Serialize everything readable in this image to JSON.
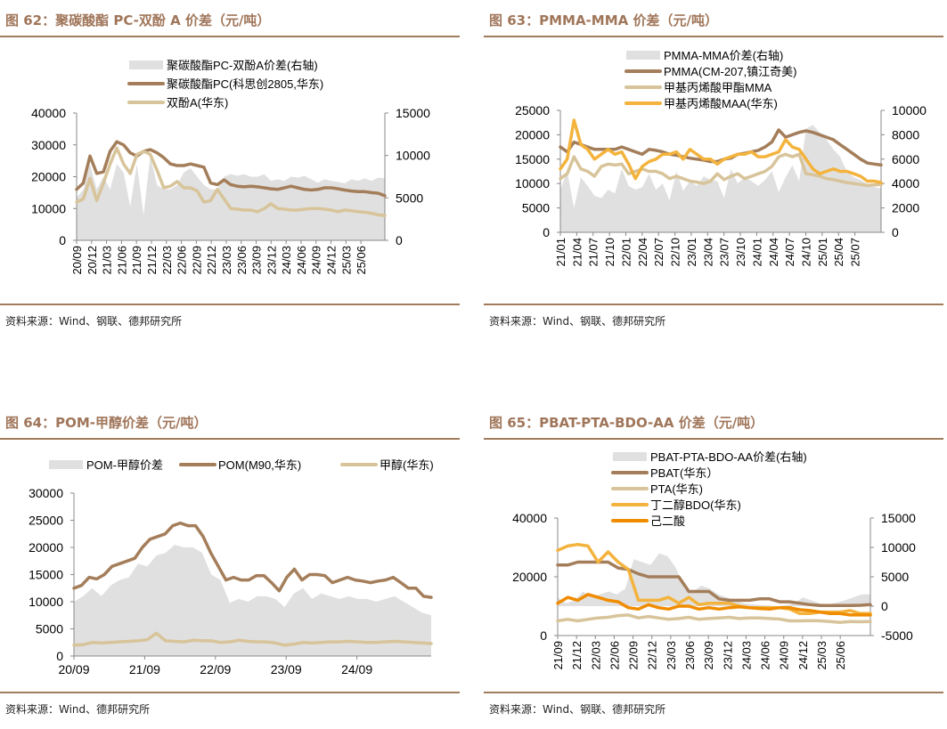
{
  "panels": [
    {
      "id": "fig62",
      "title": "图 62：聚碳酸酯 PC-双酚 A 价差（元/吨）",
      "source": "资料来源：Wind、钢联、德邦研究所"
    },
    {
      "id": "fig63",
      "title": "图 63：PMMA-MMA 价差（元/吨）",
      "source": "资料来源：Wind、钢联、德邦研究所"
    },
    {
      "id": "fig64",
      "title": "图 64：POM-甲醇价差（元/吨）",
      "source": "资料来源：Wind、德邦研究所"
    },
    {
      "id": "fig65",
      "title": "图 65：PBAT-PTA-BDO-AA 价差（元/吨）",
      "source": "资料来源：Wind、钢联、德邦研究所"
    }
  ],
  "colors": {
    "title": "#a0765a",
    "rule": "#a07c5c",
    "spread": "#e0e0e0",
    "brown": "#a47e5a",
    "beige": "#d8c49a",
    "yellow": "#f3b33d",
    "orange": "#f08c00"
  },
  "chart_data": [
    {
      "type": "line",
      "title": "聚碳酸酯 PC-双酚 A 价差（元/吨）",
      "legend_position": "top-center",
      "legend": [
        "聚碳酸酯PC-双酚A价差(右轴)",
        "聚碳酸酯PC(科思创2805,华东)",
        "双酚A(华东)"
      ],
      "x_ticks": [
        "20/09",
        "20/12",
        "21/03",
        "21/06",
        "21/09",
        "21/12",
        "22/03",
        "22/06",
        "22/09",
        "22/12",
        "23/03",
        "23/06",
        "23/09",
        "23/12",
        "24/03",
        "24/06",
        "24/09",
        "24/12",
        "25/03",
        "25/06"
      ],
      "y_left": {
        "ylim": [
          0,
          40000
        ],
        "ticks": [
          0,
          10000,
          20000,
          30000,
          40000
        ]
      },
      "y_right": {
        "ylim": [
          0,
          15000
        ],
        "ticks": [
          0,
          5000,
          10000,
          15000
        ]
      },
      "series": [
        {
          "name": "聚碳酸酯PC-双酚A价差(右轴)",
          "axis": "right",
          "kind": "area",
          "color_key": "spread",
          "values": [
            5000,
            6000,
            9000,
            6000,
            7500,
            6000,
            9000,
            8000,
            4000,
            9000,
            3000,
            10000,
            6500,
            6000,
            6000,
            6500,
            8000,
            8500,
            7500,
            6500,
            6000,
            6000,
            7500,
            7800,
            7600,
            7800,
            7500,
            7500,
            7800,
            7000,
            7200,
            7000,
            7500,
            7400,
            7600,
            7200,
            6800,
            7200,
            7000,
            6900,
            6700,
            7200,
            7000,
            7300,
            7000,
            7400,
            7300
          ]
        },
        {
          "name": "聚碳酸酯PC(科思创2805,华东)",
          "axis": "left",
          "kind": "line",
          "color_key": "brown",
          "values": [
            16000,
            18000,
            26500,
            21000,
            21500,
            28000,
            31000,
            30000,
            27500,
            26500,
            28000,
            28500,
            27500,
            26000,
            24000,
            23500,
            23500,
            24000,
            23500,
            23000,
            18000,
            17500,
            19000,
            17500,
            17000,
            16800,
            17000,
            16800,
            16500,
            16200,
            16000,
            16500,
            17000,
            16500,
            16000,
            15800,
            16000,
            16500,
            16500,
            16200,
            15800,
            15500,
            15300,
            15300,
            15000,
            14800,
            14000
          ]
        },
        {
          "name": "双酚A(华东)",
          "axis": "left",
          "kind": "line",
          "color_key": "beige",
          "values": [
            12000,
            13000,
            19500,
            12500,
            18000,
            24000,
            29000,
            24000,
            21000,
            27000,
            28000,
            27000,
            22000,
            16500,
            17000,
            18500,
            16500,
            16500,
            15500,
            12000,
            12500,
            16000,
            13000,
            10000,
            9800,
            9500,
            9500,
            9000,
            10000,
            11500,
            10000,
            9800,
            9500,
            9500,
            9800,
            10000,
            10000,
            9800,
            9500,
            9000,
            9500,
            9300,
            9000,
            8800,
            8500,
            8000,
            7800
          ]
        }
      ]
    },
    {
      "type": "line",
      "title": "PMMA-MMA 价差（元/吨）",
      "legend_position": "top-center",
      "legend": [
        "PMMA-MMA价差(右轴)",
        "PMMA(CM-207,镇江奇美)",
        "甲基丙烯酸甲酯MMA",
        "甲基丙烯酸MAA(华东)"
      ],
      "x_ticks": [
        "21/01",
        "21/04",
        "21/07",
        "21/10",
        "22/01",
        "22/04",
        "22/07",
        "22/10",
        "23/01",
        "23/04",
        "23/07",
        "23/10",
        "24/01",
        "24/04",
        "24/07",
        "24/10",
        "25/01",
        "25/04",
        "25/07"
      ],
      "y_left": {
        "ylim": [
          0,
          25000
        ],
        "ticks": [
          0,
          5000,
          10000,
          15000,
          20000,
          25000
        ]
      },
      "y_right": {
        "ylim": [
          0,
          10000
        ],
        "ticks": [
          0,
          2000,
          4000,
          6000,
          8000,
          10000
        ]
      },
      "series": [
        {
          "name": "PMMA-MMA价差(右轴)",
          "axis": "right",
          "kind": "area",
          "color_key": "spread",
          "values": [
            3500,
            5000,
            2000,
            4500,
            3800,
            3000,
            2800,
            3500,
            3200,
            5200,
            3800,
            3500,
            3700,
            4800,
            3500,
            4000,
            2600,
            5000,
            3400,
            4200,
            3800,
            4600,
            4300,
            4200,
            2800,
            5200,
            4000,
            4500,
            4200,
            3800,
            4300,
            5000,
            3300,
            4500,
            5500,
            4200,
            8500,
            8800,
            8200,
            7600,
            6800,
            6200,
            5000,
            4500,
            4300,
            4000,
            3700,
            3600
          ]
        },
        {
          "name": "PMMA(CM-207,镇江奇美)",
          "axis": "left",
          "kind": "line",
          "color_key": "brown",
          "values": [
            17500,
            16500,
            18500,
            18000,
            17500,
            17000,
            17000,
            17000,
            17000,
            17500,
            17000,
            16500,
            16000,
            17000,
            16800,
            16500,
            16000,
            15800,
            15500,
            15200,
            15000,
            14800,
            14500,
            14500,
            15000,
            15200,
            16000,
            16200,
            16500,
            16800,
            17500,
            18500,
            21000,
            19500,
            20000,
            20500,
            20800,
            20500,
            20000,
            19500,
            19000,
            18000,
            17000,
            16000,
            15000,
            14200,
            14000,
            13800
          ]
        },
        {
          "name": "甲基丙烯酸甲酯MMA",
          "axis": "left",
          "kind": "line",
          "color_key": "beige",
          "values": [
            11000,
            12000,
            15500,
            13000,
            12500,
            11500,
            13500,
            14000,
            13800,
            14000,
            12000,
            12500,
            13000,
            12500,
            12500,
            12000,
            11000,
            11500,
            11000,
            10500,
            10300,
            10000,
            10500,
            12000,
            10800,
            11500,
            12000,
            11000,
            11500,
            12000,
            12500,
            13500,
            15500,
            16000,
            15500,
            16000,
            12000,
            11800,
            11500,
            11000,
            10800,
            10500,
            10200,
            10000,
            9800,
            9600,
            9700,
            9800
          ]
        },
        {
          "name": "甲基丙烯酸MAA(华东)",
          "axis": "left",
          "kind": "line",
          "color_key": "yellow",
          "values": [
            13000,
            15000,
            23000,
            18000,
            17000,
            15000,
            16000,
            17000,
            16000,
            16500,
            14000,
            11000,
            13500,
            14500,
            15000,
            16000,
            16000,
            16500,
            15000,
            17000,
            16000,
            15000,
            15000,
            14000,
            15000,
            15500,
            16000,
            16000,
            16500,
            15500,
            15500,
            16000,
            16500,
            19000,
            17500,
            17000,
            15000,
            13000,
            12000,
            12500,
            13000,
            12500,
            12500,
            12000,
            11500,
            10500,
            10500,
            10200
          ]
        }
      ]
    },
    {
      "type": "line",
      "title": "POM-甲醇价差（元/吨）",
      "legend_position": "top",
      "legend": [
        "POM-甲醇价差",
        "POM(M90,华东)",
        "甲醇(华东)"
      ],
      "x_ticks": [
        "20/09",
        "21/09",
        "22/09",
        "23/09",
        "24/09"
      ],
      "y_left": {
        "ylim": [
          0,
          30000
        ],
        "ticks": [
          0,
          5000,
          10000,
          15000,
          20000,
          25000,
          30000
        ]
      },
      "series": [
        {
          "name": "POM-甲醇价差",
          "axis": "left",
          "kind": "area",
          "color_key": "spread",
          "values": [
            10000,
            11000,
            12500,
            11000,
            13000,
            14000,
            14500,
            17000,
            16500,
            18500,
            19000,
            20500,
            20000,
            20000,
            19000,
            15000,
            14000,
            9800,
            10500,
            10000,
            11000,
            11000,
            10500,
            9000,
            11500,
            12500,
            10500,
            11500,
            11000,
            10500,
            11000,
            10500,
            10500,
            10000,
            10500,
            11000,
            10000,
            9000,
            8000,
            7500
          ]
        },
        {
          "name": "POM(M90,华东)",
          "axis": "left",
          "kind": "line",
          "color_key": "brown",
          "values": [
            12500,
            13000,
            14500,
            14200,
            15000,
            16500,
            17000,
            17500,
            18000,
            20000,
            21500,
            22000,
            22500,
            24000,
            24500,
            24000,
            24000,
            22000,
            19000,
            16500,
            14000,
            14500,
            14000,
            14000,
            14800,
            14800,
            13500,
            12000,
            14500,
            16000,
            14000,
            15000,
            15000,
            14800,
            13500,
            14000,
            14500,
            14000,
            13800,
            13500,
            13800,
            14000,
            14500,
            13500,
            12500,
            12500,
            11000,
            10800
          ]
        },
        {
          "name": "甲醇(华东)",
          "axis": "left",
          "kind": "line",
          "color_key": "beige",
          "values": [
            2000,
            2100,
            2500,
            2400,
            2500,
            2600,
            2700,
            2800,
            3000,
            4200,
            2800,
            2700,
            2600,
            2900,
            2800,
            2800,
            2500,
            2600,
            2900,
            2700,
            2600,
            2600,
            2400,
            2000,
            2200,
            2500,
            2400,
            2500,
            2600,
            2600,
            2700,
            2600,
            2500,
            2500,
            2600,
            2700,
            2600,
            2500,
            2400,
            2300
          ]
        }
      ]
    },
    {
      "type": "line",
      "title": "PBAT-PTA-BDO-AA 价差（元/吨）",
      "legend_position": "top-center",
      "legend": [
        "PBAT-PTA-BDO-AA价差(右轴)",
        "PBAT(华东）",
        "PTA(华东)",
        "丁二醇BDO(华东)",
        "己二酸"
      ],
      "x_ticks": [
        "21/09",
        "21/12",
        "22/03",
        "22/06",
        "22/09",
        "22/12",
        "23/03",
        "23/06",
        "23/09",
        "23/12",
        "24/03",
        "24/06",
        "24/09",
        "24/12",
        "25/03",
        "25/06"
      ],
      "y_left": {
        "ylim": [
          0,
          40000
        ],
        "ticks": [
          0,
          20000,
          40000
        ]
      },
      "y_right": {
        "ylim": [
          -5000,
          15000
        ],
        "ticks": [
          -5000,
          0,
          5000,
          10000,
          15000
        ]
      },
      "series": [
        {
          "name": "PBAT-PTA-BDO-AA价差(右轴)",
          "axis": "right",
          "kind": "area",
          "color_key": "spread",
          "values": [
            1500,
            500,
            1000,
            2500,
            1500,
            2000,
            2500,
            2000,
            3000,
            8000,
            7500,
            7000,
            9000,
            8500,
            6500,
            3000,
            2500,
            3500,
            3000,
            2000,
            1500,
            1000,
            500,
            300,
            200,
            100,
            0,
            200,
            500,
            1500,
            1000,
            500,
            300,
            600,
            1000,
            1500,
            2000,
            2000
          ]
        },
        {
          "name": "PBAT(华东）",
          "axis": "left",
          "kind": "line",
          "color_key": "brown",
          "values": [
            24000,
            24000,
            25000,
            25000,
            25000,
            25000,
            23000,
            22500,
            21000,
            20000,
            20000,
            20000,
            20000,
            15000,
            15000,
            15000,
            12500,
            12000,
            12000,
            12000,
            12500,
            12500,
            11500,
            11500,
            11000,
            10500,
            10200,
            10200,
            10200,
            10200,
            10300,
            10500
          ]
        },
        {
          "name": "PTA(华东)",
          "axis": "left",
          "kind": "line",
          "color_key": "beige",
          "values": [
            5000,
            5500,
            5000,
            5500,
            6000,
            6200,
            6800,
            7000,
            6000,
            6500,
            6000,
            5500,
            5800,
            6200,
            5500,
            5800,
            6000,
            6200,
            5800,
            6000,
            6000,
            5800,
            5600,
            5000,
            5000,
            5100,
            5000,
            4800,
            4500,
            4800,
            4700,
            4800
          ]
        },
        {
          "name": "丁二醇BDO(华东)",
          "axis": "left",
          "kind": "line",
          "color_key": "yellow",
          "values": [
            29000,
            30500,
            31000,
            30500,
            25000,
            28500,
            25000,
            22500,
            12000,
            12000,
            12000,
            13000,
            11000,
            13000,
            10500,
            11000,
            11000,
            11000,
            10000,
            9500,
            9500,
            9500,
            9500,
            9000,
            7500,
            7500,
            8000,
            8000,
            8000,
            8500,
            7500,
            7500
          ]
        },
        {
          "name": "己二酸",
          "axis": "left",
          "kind": "line",
          "color_key": "orange",
          "values": [
            11000,
            13000,
            12000,
            14000,
            13000,
            12000,
            11500,
            9500,
            9000,
            10500,
            9500,
            9000,
            10000,
            10000,
            9000,
            9500,
            9000,
            9500,
            9800,
            9500,
            9200,
            9000,
            9500,
            9500,
            8800,
            8500,
            8000,
            7500,
            7500,
            7000,
            7000,
            7000
          ]
        }
      ]
    }
  ]
}
